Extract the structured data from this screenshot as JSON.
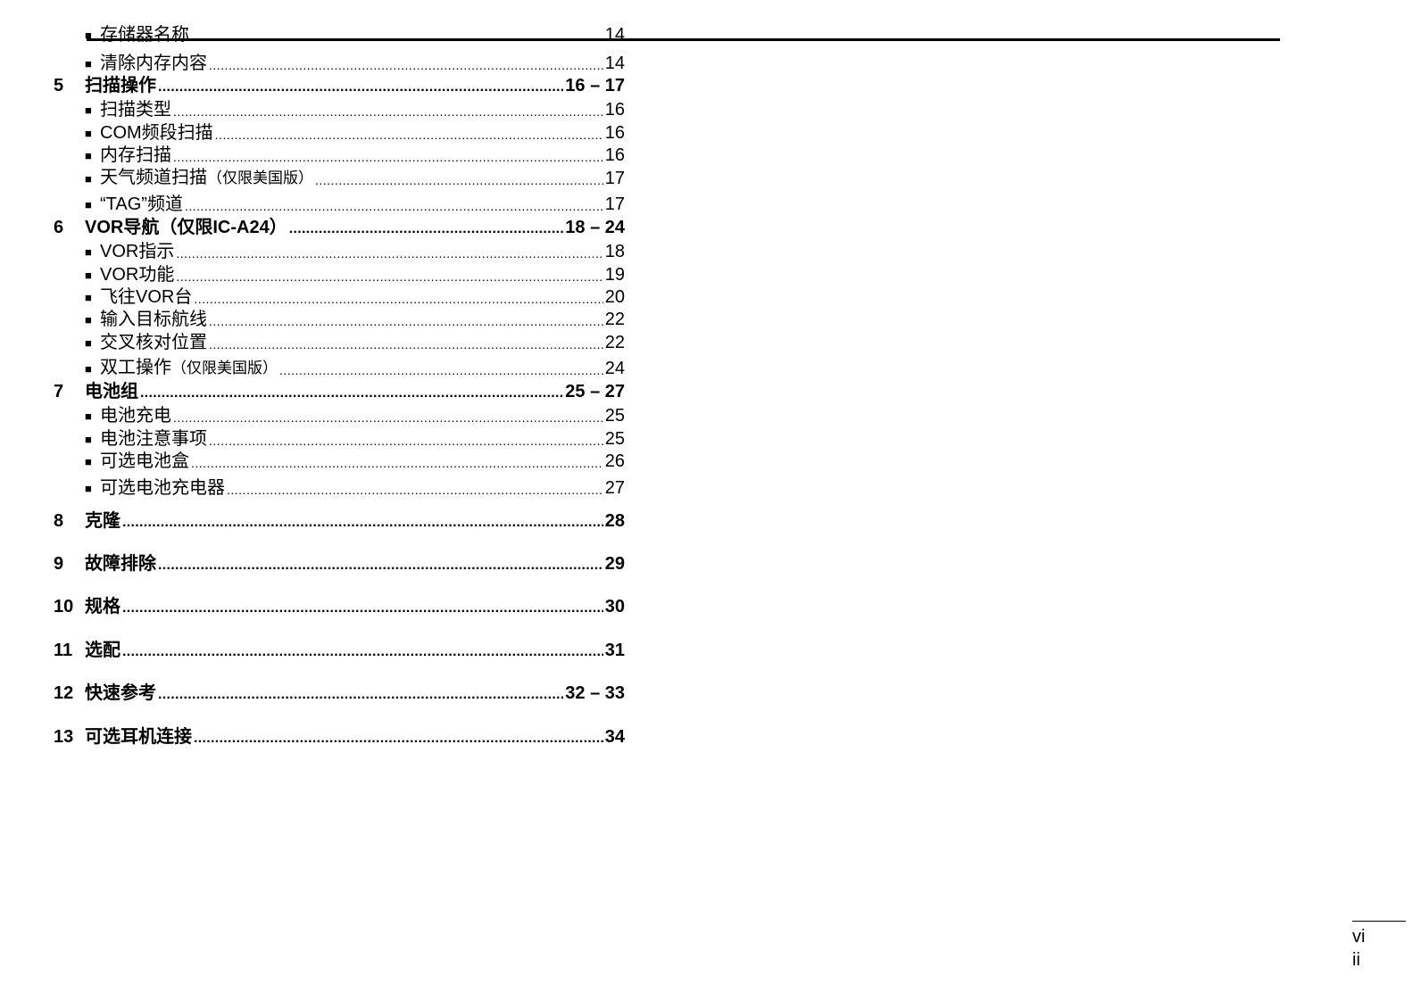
{
  "toc": [
    {
      "kind": "sub",
      "title": "存储器名称",
      "page": "14",
      "cut": true
    },
    {
      "kind": "sub",
      "title": "清除内存内容",
      "page": "14"
    },
    {
      "kind": "sec",
      "num": "5",
      "title": "扫描操作",
      "page": "16 – 17"
    },
    {
      "kind": "sub",
      "title": "扫描类型",
      "page": "16"
    },
    {
      "kind": "sub",
      "title": "COM频段扫描",
      "page": "16"
    },
    {
      "kind": "sub",
      "title": "内存扫描",
      "page": "16"
    },
    {
      "kind": "sub",
      "title": "天气频道扫描",
      "note": "（仅限美国版）",
      "page": "17"
    },
    {
      "kind": "sub",
      "title": "“TAG”频道",
      "page": "17"
    },
    {
      "kind": "sec",
      "num": "6",
      "title": "VOR导航（仅限IC-A24）",
      "page": "18 – 24"
    },
    {
      "kind": "sub",
      "title": "VOR指示",
      "page": "18"
    },
    {
      "kind": "sub",
      "title": "VOR功能",
      "page": "19"
    },
    {
      "kind": "sub",
      "title": "飞往VOR台",
      "page": "20"
    },
    {
      "kind": "sub",
      "title": "输入目标航线",
      "page": "22"
    },
    {
      "kind": "sub",
      "title": "交叉核对位置",
      "page": "22"
    },
    {
      "kind": "sub",
      "title": "双工操作",
      "note": "（仅限美国版）",
      "page": "24"
    },
    {
      "kind": "sec",
      "num": "7",
      "title": "电池组",
      "page": "25 – 27"
    },
    {
      "kind": "sub",
      "title": "电池充电",
      "page": "25"
    },
    {
      "kind": "sub",
      "title": "电池注意事项",
      "page": "25"
    },
    {
      "kind": "sub",
      "title": "可选电池盒",
      "page": "26"
    },
    {
      "kind": "sub",
      "title": "可选电池充电器",
      "page": "27"
    },
    {
      "kind": "sec",
      "num": "8",
      "title": "克隆",
      "page": "28"
    },
    {
      "kind": "sec",
      "num": "9",
      "title": "故障排除",
      "page": "29"
    },
    {
      "kind": "sec",
      "num": "10",
      "title": "规格",
      "page": "30"
    },
    {
      "kind": "sec",
      "num": "11",
      "title": "选配",
      "page": "31"
    },
    {
      "kind": "sec",
      "num": "12",
      "title": "快速参考",
      "page": "32 – 33"
    },
    {
      "kind": "sec",
      "num": "13",
      "title": "可选耳机连接",
      "page": "34"
    }
  ],
  "bullet_glyph": "■",
  "page_number": {
    "line1": "vi",
    "line2": "ii"
  }
}
